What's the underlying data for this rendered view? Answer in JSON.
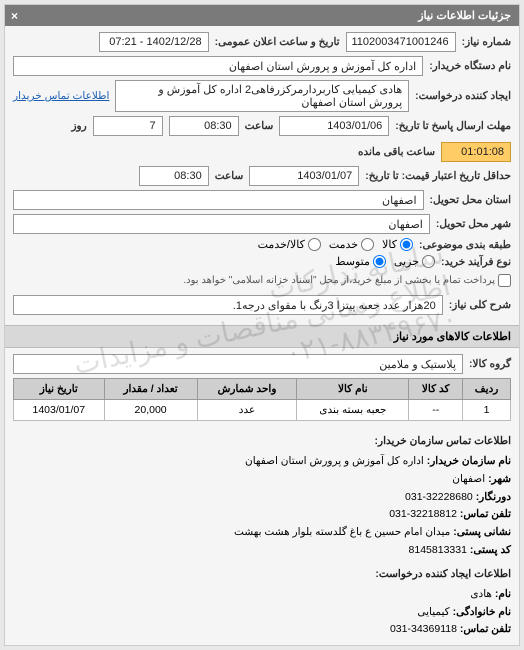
{
  "panel_title": "جزئیات اطلاعات نیاز",
  "fields": {
    "need_number_label": "شماره نیاز:",
    "need_number": "1102003471001246",
    "announce_label": "تاریخ و ساعت اعلان عمومی:",
    "announce_value": "1402/12/28 - 07:21",
    "buyer_org_label": "نام دستگاه خریدار:",
    "buyer_org": "اداره کل آموزش و پرورش استان اصفهان",
    "request_creator_label": "ایجاد کننده درخواست:",
    "request_creator": "هادی کیمیایی کاربردارمرکزرفاهی2 اداره کل آموزش و پرورش استان اصفهان",
    "buyer_contact_link": "اطلاعات تماس خریدار",
    "deadline_label": "مهلت ارسال پاسخ تا تاریخ:",
    "deadline_date": "1403/01/06",
    "time_label": "ساعت",
    "deadline_time": "08:30",
    "day_label": "روز",
    "days_remaining": "7",
    "time_remaining_label": "ساعت باقی مانده",
    "time_remaining": "01:01:08",
    "min_valid_label": "حداقل تاریخ اعتبار قیمت: تا تاریخ:",
    "min_valid_date": "1403/01/07",
    "min_valid_time": "08:30",
    "delivery_province_label": "استان محل تحویل:",
    "delivery_province": "اصفهان",
    "delivery_city_label": "شهر محل تحویل:",
    "delivery_city": "اصفهان",
    "category_label": "طبقه بندی موضوعی:",
    "radio_goods": "کالا",
    "radio_service": "خدمت",
    "radio_goods_service": "کالا/خدمت",
    "purchase_type_label": "نوع فرآیند خرید:",
    "radio_small": "جزیی",
    "radio_medium": "متوسط",
    "checkbox_note": "پرداخت تمام یا بخشی از مبلغ خرید،از محل \"اسناد خزانه اسلامی\" خواهد بود.",
    "need_desc_label": "شرح کلی نیاز:",
    "need_desc": "20هزار عدد جعبه پیتزا 3رنگ با مقوای درجه1."
  },
  "items_section_title": "اطلاعات کالاهای مورد نیاز",
  "group_label": "گروه کالا:",
  "group_value": "پلاستیک و ملامین",
  "items_table": {
    "columns": [
      "ردیف",
      "کد کالا",
      "نام کالا",
      "واحد شمارش",
      "تعداد / مقدار",
      "تاریخ نیاز"
    ],
    "rows": [
      [
        "1",
        "--",
        "جعبه بسته بندی",
        "عدد",
        "20,000",
        "1403/01/07"
      ]
    ]
  },
  "contact": {
    "heading1": "اطلاعات تماس سازمان خریدار:",
    "org_name_lbl": "نام سازمان خریدار:",
    "org_name": "اداره کل آموزش و پرورش استان اصفهان",
    "city_lbl": "شهر:",
    "city": "اصفهان",
    "prefix_lbl": "دورنگار:",
    "prefix": "32228680-031",
    "phone_lbl": "تلفن تماس:",
    "phone": "32218812-031",
    "postal_addr_lbl": "نشانی پستی:",
    "postal_addr": "میدان امام حسین ع باغ گلدسته بلوار هشت بهشت",
    "postal_code_lbl": "کد پستی:",
    "postal_code": "8145813331",
    "heading2": "اطلاعات ایجاد کننده درخواست:",
    "first_name_lbl": "نام:",
    "first_name": "هادی",
    "last_name_lbl": "نام خانوادگی:",
    "last_name": "کیمیایی",
    "contact_phone_lbl": "تلفن تماس:",
    "contact_phone": "34369118-031"
  },
  "watermark_lines": [
    "سامانه تدارکات",
    "اطلاع رسانی مناقصات و مزایدات",
    "۰۲۱-۸۸۳۴۹۶۷۰"
  ]
}
